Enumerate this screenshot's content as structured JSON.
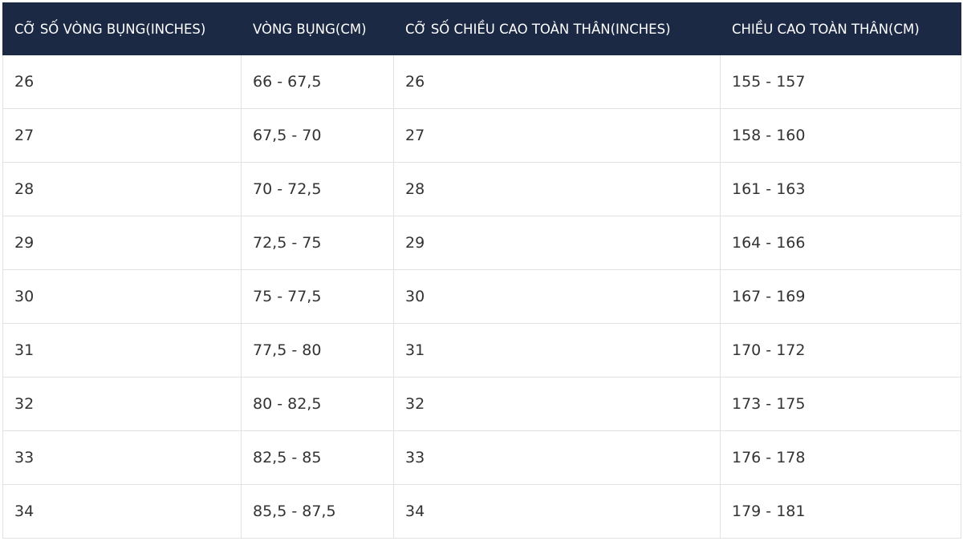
{
  "table": {
    "header": [
      "CỠ SỐ VÒNG BỤNG(INCHES)",
      "VÒNG BỤNG(CM)",
      "CỠ SỐ CHIỀU CAO TOÀN THÂN(INCHES)",
      "CHIỀU CAO TOÀN THÂN(CM)"
    ],
    "rows": [
      [
        "26",
        "66 - 67,5",
        "26",
        "155 - 157"
      ],
      [
        "27",
        "67,5 - 70",
        "27",
        "158 - 160"
      ],
      [
        "28",
        "70 - 72,5",
        "28",
        "161 - 163"
      ],
      [
        "29",
        "72,5 - 75",
        "29",
        "164 - 166"
      ],
      [
        "30",
        "75 - 77,5",
        "30",
        "167 - 169"
      ],
      [
        "31",
        "77,5 - 80",
        "31",
        "170 - 172"
      ],
      [
        "32",
        "80 - 82,5",
        "32",
        "173 - 175"
      ],
      [
        "33",
        "82,5 - 85",
        "33",
        "176 - 178"
      ],
      [
        "34",
        "85,5 - 87,5",
        "34",
        "179 - 181"
      ]
    ]
  }
}
